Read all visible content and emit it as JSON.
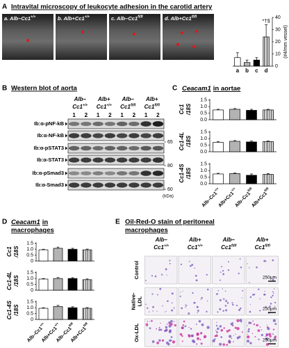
{
  "panel_a": {
    "letter": "A",
    "title": "Intravital microscopy of leukocyte adhesion in the carotid artery",
    "images": [
      {
        "prefix": "a. Alb–Cc1",
        "sup": "+/+"
      },
      {
        "prefix": "b. Alb+Cc1",
        "sup": "+/+"
      },
      {
        "prefix": "c. Alb–Cc1",
        "sup": "fl/fl"
      },
      {
        "prefix": "d. Alb+Cc1",
        "sup": "fl/fl"
      }
    ],
    "chart": {
      "type": "bar",
      "ylabel": "(#4/mm vessel)",
      "categories": [
        "a",
        "b",
        "c",
        "d"
      ],
      "values": [
        7,
        3,
        5,
        24
      ],
      "errors": [
        4,
        2,
        2,
        10
      ],
      "colors": [
        "#ffffff",
        "#b3b3b3",
        "#000000",
        "#ffffff"
      ],
      "hatch": [
        false,
        false,
        false,
        true
      ],
      "ylim": [
        0,
        40
      ],
      "yticks": [
        0,
        10,
        20,
        30,
        40
      ],
      "annotation": "*†§"
    }
  },
  "panel_b": {
    "letter": "B",
    "title": "Western blot of aorta",
    "groups": [
      {
        "line1": "Alb–",
        "line2": "Cc1",
        "sup": "+/+"
      },
      {
        "line1": "Alb+",
        "line2": "Cc1",
        "sup": "+/+"
      },
      {
        "line1": "Alb–",
        "line2": "Cc1",
        "sup": "fl/fl"
      },
      {
        "line1": "Alb+",
        "line2": "Cc1",
        "sup": "fl/fl"
      }
    ],
    "lanes": [
      "1",
      "2",
      "1",
      "2",
      "1",
      "2",
      "1",
      "2"
    ],
    "rows": [
      "Ib:α-pNF-kB",
      "Ib:α-NF-kB",
      "Ib:α-pSTAT3",
      "Ib:α-STAT3",
      "Ib:α-pSmad3",
      "Ib:α-Smad3"
    ],
    "markers": [
      "65",
      "80",
      "60"
    ],
    "unit": "(kDa)"
  },
  "panel_c": {
    "letter": "C",
    "title_gene": "Ceacam1",
    "title": "in aortae",
    "categories": [
      {
        "name": "Alb–Cc1",
        "sup": "+/+"
      },
      {
        "name": "Alb+Cc1",
        "sup": "+/+"
      },
      {
        "name": "Alb–Cc1",
        "sup": "fl/fl"
      },
      {
        "name": "Alb+Cc1",
        "sup": "fl/fl"
      }
    ],
    "colors": [
      "#ffffff",
      "#b3b3b3",
      "#000000",
      "#ffffff"
    ],
    "hatch": [
      false,
      false,
      false,
      true
    ],
    "charts": [
      {
        "type": "bar",
        "ylabel": [
          "Cc1",
          "/18S"
        ],
        "values": [
          0.75,
          0.8,
          0.72,
          0.75
        ],
        "errors": [
          0.05,
          0.06,
          0.08,
          0.05
        ],
        "ylim": [
          0,
          1.6
        ],
        "yticks": [
          {
            "value": 0,
            "label": "0.0"
          },
          0.5,
          {
            "value": 1,
            "label": "1.0"
          },
          1.5
        ]
      },
      {
        "type": "bar",
        "ylabel": [
          "Cc1-4L",
          "/18S"
        ],
        "values": [
          0.72,
          0.8,
          0.75,
          0.78
        ],
        "errors": [
          0.05,
          0.06,
          0.07,
          0.05
        ],
        "ylim": [
          0,
          1.6
        ],
        "yticks": [
          {
            "value": 0,
            "label": "0.0"
          },
          0.5,
          {
            "value": 1,
            "label": "1.0"
          },
          1.5
        ]
      },
      {
        "type": "bar",
        "ylabel": [
          "Cc1-4S",
          "/18S"
        ],
        "values": [
          0.75,
          0.78,
          0.65,
          0.72
        ],
        "errors": [
          0.05,
          0.05,
          0.1,
          0.06
        ],
        "ylim": [
          0,
          1.6
        ],
        "yticks": [
          {
            "value": 0,
            "label": "0.0"
          },
          0.5,
          {
            "value": 1,
            "label": "1.0"
          },
          1.5
        ]
      }
    ]
  },
  "panel_d": {
    "letter": "D",
    "title_gene": "Ceacam1",
    "title": "in",
    "title_line2": "macrophages",
    "categories": [
      {
        "name": "Alb–Cc1",
        "sup": "+/+"
      },
      {
        "name": "Alb+Cc1",
        "sup": "+/+"
      },
      {
        "name": "Alb–Cc1",
        "sup": "fl/fl"
      },
      {
        "name": "Alb+Cc1",
        "sup": "fl/fl"
      }
    ],
    "colors": [
      "#ffffff",
      "#b3b3b3",
      "#000000",
      "#ffffff"
    ],
    "hatch": [
      false,
      false,
      false,
      true
    ],
    "charts": [
      {
        "type": "bar",
        "ylabel": [
          "Cc1",
          "/18S"
        ],
        "values": [
          0.95,
          1.08,
          1.0,
          0.95
        ],
        "errors": [
          0.05,
          0.1,
          0.08,
          0.06
        ],
        "ylim": [
          0,
          1.6
        ],
        "yticks": [
          0,
          0.5,
          {
            "value": 1,
            "label": "1.0"
          },
          1.5
        ]
      },
      {
        "type": "bar",
        "ylabel": [
          "Cc1-4L",
          "/18S"
        ],
        "values": [
          0.95,
          1.0,
          1.0,
          0.9
        ],
        "errors": [
          0.05,
          0.08,
          0.07,
          0.06
        ],
        "ylim": [
          0,
          1.6
        ],
        "yticks": [
          0,
          0.5,
          {
            "value": 1,
            "label": "1.0"
          },
          1.5
        ]
      },
      {
        "type": "bar",
        "ylabel": [
          "Cc1-4S",
          "/18S"
        ],
        "values": [
          0.95,
          1.1,
          1.0,
          0.95
        ],
        "errors": [
          0.05,
          0.1,
          0.08,
          0.06
        ],
        "ylim": [
          0,
          1.6
        ],
        "yticks": [
          0,
          0.5,
          {
            "value": 1,
            "label": "1.0"
          },
          1.5
        ]
      }
    ]
  },
  "panel_e": {
    "letter": "E",
    "title_lines": [
      "Oil-Red-O stain of peritoneal",
      "macrophages"
    ],
    "groups": [
      {
        "line1": "Alb–",
        "line2": "Cc1",
        "sup": "+/+"
      },
      {
        "line1": "Alb+",
        "line2": "Cc1",
        "sup": "+/+"
      },
      {
        "line1": "Alb–",
        "line2": "Cc1",
        "sup": "fl/fl"
      },
      {
        "line1": "Alb+",
        "line2": "Cc1",
        "sup": "fl/fl"
      }
    ],
    "rows": [
      [
        "Control"
      ],
      [
        "Native-",
        "LDL"
      ],
      [
        "Ox-LDL"
      ]
    ],
    "scale": "250μm"
  }
}
